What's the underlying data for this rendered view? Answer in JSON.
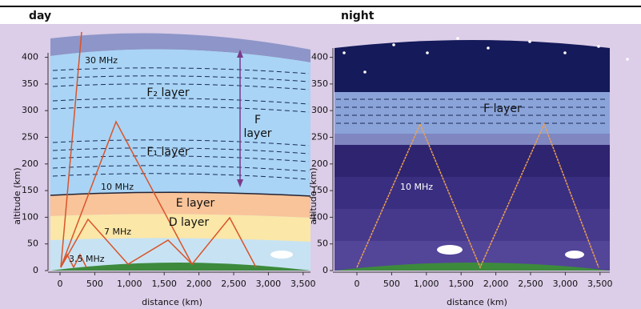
{
  "panels": [
    {
      "title": "day",
      "y_axis_label": "altitude (km)",
      "x_axis_label": "distance (km)",
      "y_ticks": [
        "0",
        "50",
        "100",
        "150",
        "200",
        "250",
        "300",
        "350",
        "400"
      ],
      "x_ticks": [
        "0",
        "500",
        "1,000",
        "1,500",
        "2,000",
        "2,500",
        "3,000",
        "3,500"
      ],
      "labels": {
        "mhz_30": "30 MHz",
        "f2_layer": "F₂ layer",
        "f_layer": [
          "F",
          "layer"
        ],
        "f1_layer": "F₁ layer",
        "mhz_10": "10 MHz",
        "e_layer": "E layer",
        "d_layer": "D layer",
        "mhz_7": "7 MHz",
        "mhz_3_5": "3.5 MHz"
      }
    },
    {
      "title": "night",
      "y_axis_label": "altitude (km)",
      "x_axis_label": "distance (km)",
      "y_ticks": [
        "0",
        "50",
        "100",
        "150",
        "200",
        "250",
        "300",
        "350",
        "400"
      ],
      "x_ticks": [
        "0",
        "500",
        "1,000",
        "1,500",
        "2,000",
        "2,500",
        "3,000",
        "3,500"
      ],
      "labels": {
        "f_layer": "F layer",
        "mhz_10": "10 MHz"
      }
    }
  ]
}
